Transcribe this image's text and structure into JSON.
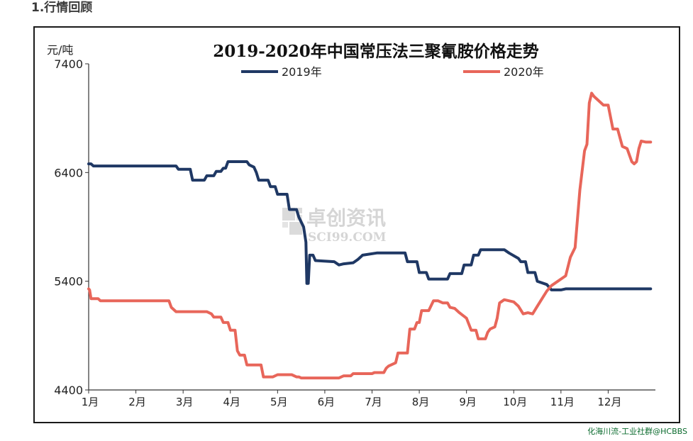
{
  "section": {
    "heading": "1.行情回顾"
  },
  "watermark": {
    "brand": "卓创资讯",
    "site": "SCI99.COM"
  },
  "footer": {
    "credit": "化海川流-工业社群@HCBBS"
  },
  "colors": {
    "series_2019": "#1f3864",
    "series_2020": "#e8665a",
    "axis": "#333333"
  },
  "chart_data": {
    "type": "line",
    "title": "2019-2020年中国常压法三聚氰胺价格走势",
    "ylabel": "元/吨",
    "xlabel": "",
    "ylim": [
      4400,
      7400
    ],
    "xlim": [
      1,
      13
    ],
    "y_ticks": [
      4400,
      5400,
      6400,
      7400
    ],
    "x_ticks": [
      {
        "label": "1月",
        "x": 1
      },
      {
        "label": "2月",
        "x": 2
      },
      {
        "label": "3月",
        "x": 3
      },
      {
        "label": "4月",
        "x": 4
      },
      {
        "label": "5月",
        "x": 5
      },
      {
        "label": "6月",
        "x": 6
      },
      {
        "label": "7月",
        "x": 7
      },
      {
        "label": "8月",
        "x": 8
      },
      {
        "label": "9月",
        "x": 9
      },
      {
        "label": "10月",
        "x": 10
      },
      {
        "label": "11月",
        "x": 11
      },
      {
        "label": "12月",
        "x": 12
      }
    ],
    "grid": false,
    "legend": "top",
    "series": [
      {
        "name": "2019年",
        "color": "#1f3864",
        "points": [
          [
            1.0,
            6480
          ],
          [
            1.05,
            6480
          ],
          [
            1.1,
            6460
          ],
          [
            2.5,
            6460
          ],
          [
            2.85,
            6460
          ],
          [
            2.9,
            6430
          ],
          [
            3.15,
            6430
          ],
          [
            3.2,
            6330
          ],
          [
            3.45,
            6330
          ],
          [
            3.5,
            6370
          ],
          [
            3.65,
            6370
          ],
          [
            3.7,
            6410
          ],
          [
            3.8,
            6410
          ],
          [
            3.85,
            6440
          ],
          [
            3.9,
            6440
          ],
          [
            3.95,
            6500
          ],
          [
            4.35,
            6500
          ],
          [
            4.4,
            6470
          ],
          [
            4.5,
            6450
          ],
          [
            4.55,
            6400
          ],
          [
            4.6,
            6330
          ],
          [
            4.8,
            6330
          ],
          [
            4.85,
            6270
          ],
          [
            4.95,
            6270
          ],
          [
            5.0,
            6200
          ],
          [
            5.2,
            6200
          ],
          [
            5.25,
            6060
          ],
          [
            5.4,
            6060
          ],
          [
            5.45,
            5990
          ],
          [
            5.55,
            5900
          ],
          [
            5.6,
            5760
          ],
          [
            5.62,
            5380
          ],
          [
            5.65,
            5380
          ],
          [
            5.68,
            5640
          ],
          [
            5.75,
            5640
          ],
          [
            5.8,
            5590
          ],
          [
            6.2,
            5580
          ],
          [
            6.3,
            5550
          ],
          [
            6.4,
            5560
          ],
          [
            6.6,
            5570
          ],
          [
            6.7,
            5600
          ],
          [
            6.8,
            5640
          ],
          [
            7.1,
            5660
          ],
          [
            7.7,
            5660
          ],
          [
            7.75,
            5580
          ],
          [
            7.95,
            5580
          ],
          [
            8.0,
            5480
          ],
          [
            8.15,
            5480
          ],
          [
            8.2,
            5420
          ],
          [
            8.6,
            5420
          ],
          [
            8.65,
            5470
          ],
          [
            8.9,
            5470
          ],
          [
            8.95,
            5550
          ],
          [
            9.1,
            5550
          ],
          [
            9.15,
            5640
          ],
          [
            9.25,
            5640
          ],
          [
            9.3,
            5690
          ],
          [
            9.8,
            5690
          ],
          [
            9.9,
            5660
          ],
          [
            10.1,
            5610
          ],
          [
            10.15,
            5580
          ],
          [
            10.25,
            5580
          ],
          [
            10.3,
            5480
          ],
          [
            10.45,
            5480
          ],
          [
            10.5,
            5400
          ],
          [
            10.7,
            5370
          ],
          [
            10.8,
            5320
          ],
          [
            11.0,
            5320
          ],
          [
            11.1,
            5330
          ],
          [
            11.25,
            5330
          ],
          [
            11.3,
            5330
          ],
          [
            12.9,
            5330
          ]
        ]
      },
      {
        "name": "2020年",
        "color": "#e8665a",
        "points": [
          [
            1.0,
            5330
          ],
          [
            1.02,
            5320
          ],
          [
            1.05,
            5240
          ],
          [
            1.1,
            5240
          ],
          [
            1.2,
            5240
          ],
          [
            1.25,
            5220
          ],
          [
            2.0,
            5220
          ],
          [
            2.5,
            5220
          ],
          [
            2.7,
            5220
          ],
          [
            2.75,
            5160
          ],
          [
            2.85,
            5120
          ],
          [
            3.5,
            5120
          ],
          [
            3.6,
            5100
          ],
          [
            3.65,
            5070
          ],
          [
            3.8,
            5070
          ],
          [
            3.85,
            5020
          ],
          [
            3.95,
            5020
          ],
          [
            4.0,
            4950
          ],
          [
            4.1,
            4950
          ],
          [
            4.15,
            4760
          ],
          [
            4.2,
            4720
          ],
          [
            4.3,
            4720
          ],
          [
            4.35,
            4630
          ],
          [
            4.65,
            4630
          ],
          [
            4.7,
            4520
          ],
          [
            4.9,
            4520
          ],
          [
            5.0,
            4540
          ],
          [
            5.3,
            4540
          ],
          [
            5.4,
            4520
          ],
          [
            5.45,
            4520
          ],
          [
            5.5,
            4510
          ],
          [
            6.3,
            4510
          ],
          [
            6.4,
            4530
          ],
          [
            6.55,
            4530
          ],
          [
            6.6,
            4550
          ],
          [
            7.0,
            4550
          ],
          [
            7.05,
            4560
          ],
          [
            7.25,
            4560
          ],
          [
            7.3,
            4600
          ],
          [
            7.35,
            4620
          ],
          [
            7.5,
            4650
          ],
          [
            7.55,
            4740
          ],
          [
            7.75,
            4740
          ],
          [
            7.8,
            4960
          ],
          [
            7.9,
            4960
          ],
          [
            7.95,
            5020
          ],
          [
            8.0,
            5020
          ],
          [
            8.05,
            5130
          ],
          [
            8.2,
            5130
          ],
          [
            8.3,
            5220
          ],
          [
            8.4,
            5220
          ],
          [
            8.5,
            5200
          ],
          [
            8.6,
            5200
          ],
          [
            8.65,
            5160
          ],
          [
            8.75,
            5150
          ],
          [
            8.85,
            5110
          ],
          [
            9.0,
            5060
          ],
          [
            9.1,
            4950
          ],
          [
            9.2,
            4950
          ],
          [
            9.25,
            4870
          ],
          [
            9.4,
            4870
          ],
          [
            9.45,
            4930
          ],
          [
            9.5,
            4960
          ],
          [
            9.6,
            4980
          ],
          [
            9.65,
            5060
          ],
          [
            9.7,
            5200
          ],
          [
            9.8,
            5230
          ],
          [
            10.0,
            5210
          ],
          [
            10.1,
            5170
          ],
          [
            10.2,
            5100
          ],
          [
            10.3,
            5110
          ],
          [
            10.4,
            5100
          ],
          [
            10.5,
            5170
          ],
          [
            10.6,
            5240
          ],
          [
            10.7,
            5310
          ],
          [
            10.8,
            5360
          ],
          [
            10.9,
            5390
          ],
          [
            11.0,
            5420
          ],
          [
            11.1,
            5450
          ],
          [
            11.2,
            5620
          ],
          [
            11.3,
            5710
          ],
          [
            11.4,
            6240
          ],
          [
            11.5,
            6600
          ],
          [
            11.55,
            6660
          ],
          [
            11.6,
            7040
          ],
          [
            11.65,
            7130
          ],
          [
            11.7,
            7100
          ],
          [
            11.8,
            7060
          ],
          [
            11.9,
            7020
          ],
          [
            12.0,
            7020
          ],
          [
            12.1,
            6800
          ],
          [
            12.2,
            6800
          ],
          [
            12.3,
            6640
          ],
          [
            12.4,
            6620
          ],
          [
            12.5,
            6500
          ],
          [
            12.55,
            6480
          ],
          [
            12.6,
            6500
          ],
          [
            12.65,
            6620
          ],
          [
            12.7,
            6690
          ],
          [
            12.8,
            6680
          ],
          [
            12.9,
            6680
          ]
        ]
      }
    ]
  }
}
